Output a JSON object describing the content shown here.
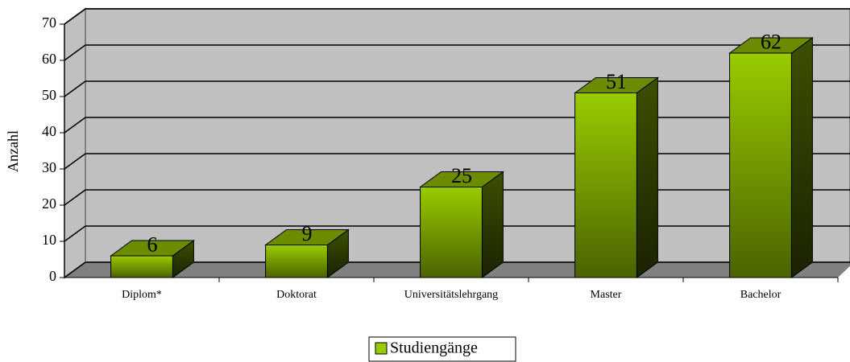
{
  "chart_data": {
    "type": "bar3d",
    "ylabel": "Anzahl",
    "categories": [
      "Diplom*",
      "Doktorat",
      "Universitätslehrgang",
      "Master",
      "Bachelor"
    ],
    "series": [
      {
        "name": "Studiengänge",
        "color": "#99cc00",
        "values": [
          6,
          9,
          25,
          51,
          62
        ]
      }
    ],
    "ylim": [
      0,
      70
    ],
    "yticks": [
      0,
      10,
      20,
      30,
      40,
      50,
      60,
      70
    ],
    "grid": true,
    "legend": "bottom"
  }
}
